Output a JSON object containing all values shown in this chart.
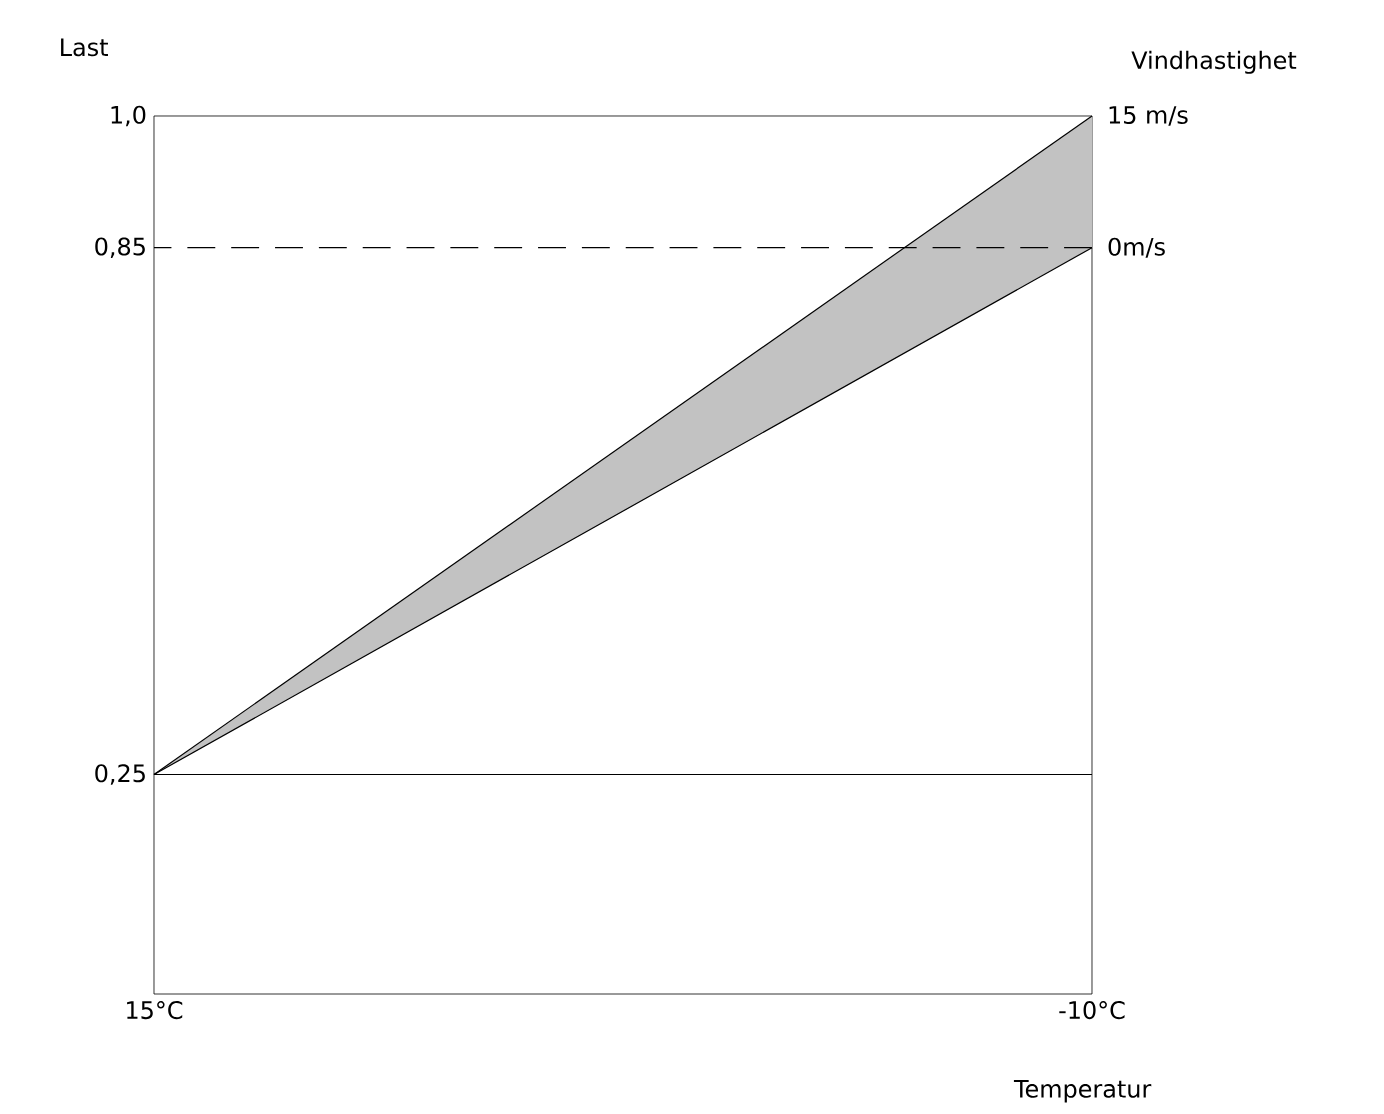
{
  "chart_data": {
    "type": "line",
    "ylabel": "Last",
    "y2label": "Vindhastighet",
    "xlabel": "Temperatur",
    "x": [
      15,
      -10
    ],
    "xlim": [
      15,
      -10
    ],
    "xticks": [
      {
        "value": 15,
        "label": "15°C"
      },
      {
        "value": -10,
        "label": "-10°C"
      }
    ],
    "ylim": [
      0,
      1.0
    ],
    "yticks": [
      {
        "value": 0.25,
        "label": "0,25"
      },
      {
        "value": 0.85,
        "label": "0,85"
      },
      {
        "value": 1.0,
        "label": "1,0"
      }
    ],
    "y2lim": [
      -85,
      15
    ],
    "y2ticks": [
      {
        "value": 0,
        "label": "0m/s"
      },
      {
        "value": 15,
        "label": "15 m/s"
      }
    ],
    "series": [
      {
        "color": "#000000",
        "values": [
          0.25,
          1.0
        ],
        "lower": [
          0.25,
          0.85
        ],
        "upper": [
          0.25,
          1.0
        ]
      },
      {
        "color": "#000000",
        "values": [
          0.25,
          0.85
        ]
      }
    ],
    "ref_lines": [
      {
        "axis": "y",
        "value": 0.85,
        "line_style": "dashed",
        "color": "#000000"
      },
      {
        "axis": "y",
        "value": 0.25,
        "line_style": "solid",
        "color": "#000000"
      }
    ],
    "grid": false,
    "marker": "none"
  }
}
